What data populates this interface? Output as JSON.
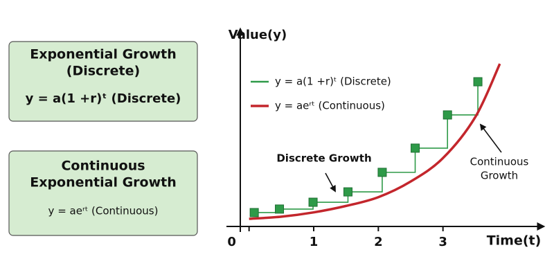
{
  "panels": [
    {
      "title_lines": [
        "Exponential Growth",
        "(Discrete)"
      ],
      "formula": "y = a(1 +r)ᵗ (Discrete)",
      "color": "#2e9a48"
    },
    {
      "title_lines": [
        "Continuous",
        "Exponential Growth"
      ],
      "formula": "y = aeʳᵗ (Continuous)",
      "color": "#c3262c"
    }
  ],
  "chart_data": {
    "type": "line",
    "ylabel": "Value(y)",
    "xlabel": "Time(t)",
    "xlim": [
      -0.35,
      4.6
    ],
    "ylim": [
      0,
      10
    ],
    "xticks": [
      0,
      1,
      2,
      3
    ],
    "annotations": [
      "Discrete Growth",
      "Continuous",
      "Growth"
    ],
    "series": [
      {
        "name": "y = a(1 +r)ᵗ (Discrete)",
        "color": "#2e9a48",
        "style": "step",
        "x": [
          0.08,
          0.47,
          0.99,
          1.53,
          2.06,
          2.57,
          3.07,
          3.54
        ],
        "values": [
          0.71,
          0.89,
          1.24,
          1.77,
          2.77,
          4.01,
          5.71,
          7.41
        ]
      },
      {
        "name": "y = aeʳᵗ (Continuous)",
        "color": "#c3262c",
        "style": "curve",
        "x": [
          0,
          0.5,
          1,
          1.5,
          2,
          2.5,
          3,
          3.5,
          3.88
        ],
        "values": [
          0.39,
          0.5,
          0.72,
          1.05,
          1.5,
          2.3,
          3.5,
          5.6,
          8.33
        ]
      }
    ]
  }
}
